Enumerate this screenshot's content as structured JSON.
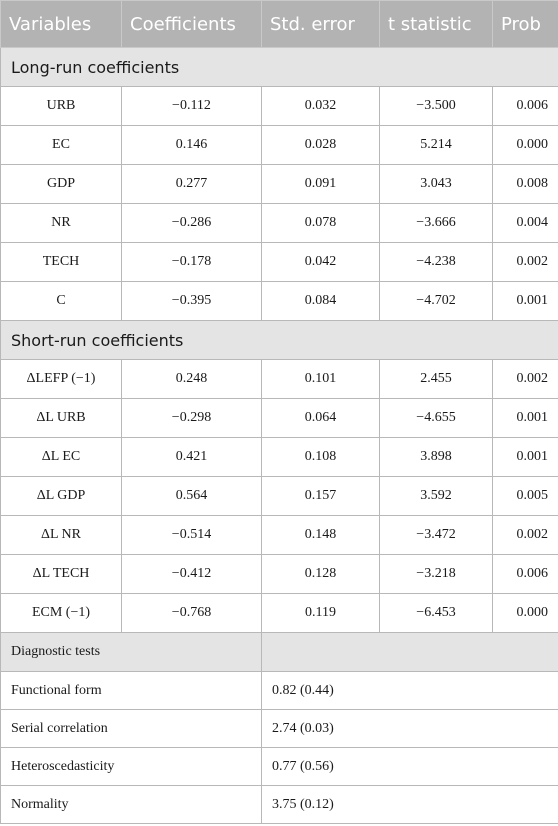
{
  "header": {
    "variables": "Variables",
    "coefficients": "Coefficients",
    "std_error": "Std. error",
    "t_statistic": "t statistic",
    "prob": "Prob"
  },
  "long_run": {
    "title": "Long-run coefficients",
    "rows": [
      {
        "var": "URB",
        "coef": "−0.112",
        "se": "0.032",
        "t": "−3.500",
        "p": "0.006"
      },
      {
        "var": "EC",
        "coef": "0.146",
        "se": "0.028",
        "t": "5.214",
        "p": "0.000"
      },
      {
        "var": "GDP",
        "coef": "0.277",
        "se": "0.091",
        "t": "3.043",
        "p": "0.008"
      },
      {
        "var": "NR",
        "coef": "−0.286",
        "se": "0.078",
        "t": "−3.666",
        "p": "0.004"
      },
      {
        "var": "TECH",
        "coef": "−0.178",
        "se": "0.042",
        "t": "−4.238",
        "p": "0.002"
      },
      {
        "var": "C",
        "coef": "−0.395",
        "se": "0.084",
        "t": "−4.702",
        "p": "0.001"
      }
    ]
  },
  "short_run": {
    "title": "Short-run coefficients",
    "rows": [
      {
        "var": "ΔLEFP (−1)",
        "coef": "0.248",
        "se": "0.101",
        "t": "2.455",
        "p": "0.002"
      },
      {
        "var": "ΔL URB",
        "coef": "−0.298",
        "se": "0.064",
        "t": "−4.655",
        "p": "0.001"
      },
      {
        "var": "ΔL EC",
        "coef": "0.421",
        "se": "0.108",
        "t": "3.898",
        "p": "0.001"
      },
      {
        "var": "ΔL GDP",
        "coef": "0.564",
        "se": "0.157",
        "t": "3.592",
        "p": "0.005"
      },
      {
        "var": "ΔL NR",
        "coef": "−0.514",
        "se": "0.148",
        "t": "−3.472",
        "p": "0.002"
      },
      {
        "var": "ΔL TECH",
        "coef": "−0.412",
        "se": "0.128",
        "t": "−3.218",
        "p": "0.006"
      },
      {
        "var": "ECM (−1)",
        "coef": "−0.768",
        "se": "0.119",
        "t": "−6.453",
        "p": "0.000"
      }
    ]
  },
  "diagnostics": {
    "title": "Diagnostic tests",
    "rows": [
      {
        "test": "Functional form",
        "value": "0.82 (0.44)"
      },
      {
        "test": "Serial correlation",
        "value": "2.74 (0.03)"
      },
      {
        "test": "Heteroscedasticity",
        "value": "0.77 (0.56)"
      },
      {
        "test": "Normality",
        "value": "3.75 (0.12)"
      }
    ]
  }
}
